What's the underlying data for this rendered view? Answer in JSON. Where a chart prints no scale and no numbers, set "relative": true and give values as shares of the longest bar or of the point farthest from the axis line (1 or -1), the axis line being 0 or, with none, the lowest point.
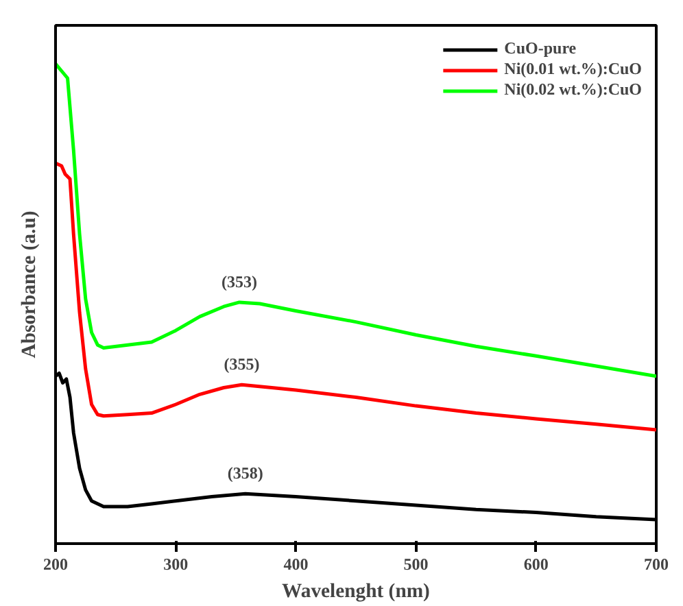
{
  "chart_data": {
    "type": "line",
    "xlabel": "Wavelenght (nm)",
    "ylabel": "Absorbance (a.u)",
    "relative": true,
    "xlim": [
      200,
      700
    ],
    "xticks": [
      200,
      300,
      400,
      500,
      600,
      700
    ],
    "tick_labels": "x",
    "grid": false,
    "legend": "top right",
    "marker": "none",
    "line_style": "solid",
    "series": [
      {
        "name": "CuO-pure",
        "color": "#000000",
        "x": [
          200,
          203,
          206,
          209,
          212,
          215,
          220,
          225,
          230,
          240,
          260,
          280,
          300,
          330,
          358,
          400,
          450,
          500,
          550,
          600,
          650,
          700
        ],
        "values": [
          0.349,
          0.355,
          0.335,
          0.343,
          0.305,
          0.231,
          0.157,
          0.112,
          0.089,
          0.077,
          0.077,
          0.083,
          0.089,
          0.098,
          0.104,
          0.098,
          0.089,
          0.08,
          0.071,
          0.065,
          0.056,
          0.05
        ]
      },
      {
        "name": "Ni(0.01 wt.%):CuO",
        "color": "#ff0000",
        "x": [
          200,
          205,
          208,
          212,
          215,
          220,
          225,
          230,
          235,
          240,
          260,
          280,
          300,
          320,
          340,
          355,
          380,
          400,
          450,
          500,
          550,
          600,
          650,
          700
        ],
        "values": [
          0.793,
          0.787,
          0.77,
          0.76,
          0.645,
          0.482,
          0.364,
          0.29,
          0.269,
          0.266,
          0.269,
          0.272,
          0.29,
          0.311,
          0.325,
          0.331,
          0.325,
          0.32,
          0.305,
          0.287,
          0.272,
          0.26,
          0.249,
          0.237
        ]
      },
      {
        "name": "Ni(0.02 wt.%):CuO",
        "color": "#00ff00",
        "x": [
          200,
          205,
          210,
          215,
          220,
          225,
          230,
          235,
          240,
          260,
          280,
          300,
          320,
          340,
          353,
          370,
          400,
          450,
          500,
          550,
          600,
          650,
          700
        ],
        "values": [
          1.0,
          0.985,
          0.97,
          0.82,
          0.645,
          0.51,
          0.44,
          0.414,
          0.408,
          0.414,
          0.42,
          0.444,
          0.473,
          0.494,
          0.503,
          0.5,
          0.485,
          0.462,
          0.435,
          0.411,
          0.391,
          0.37,
          0.349
        ]
      }
    ],
    "annotations": [
      {
        "text": "(353)",
        "x": 353,
        "y": 0.503
      },
      {
        "text": "(355)",
        "x": 355,
        "y": 0.331
      },
      {
        "text": "(358)",
        "x": 358,
        "y": 0.104
      }
    ]
  }
}
